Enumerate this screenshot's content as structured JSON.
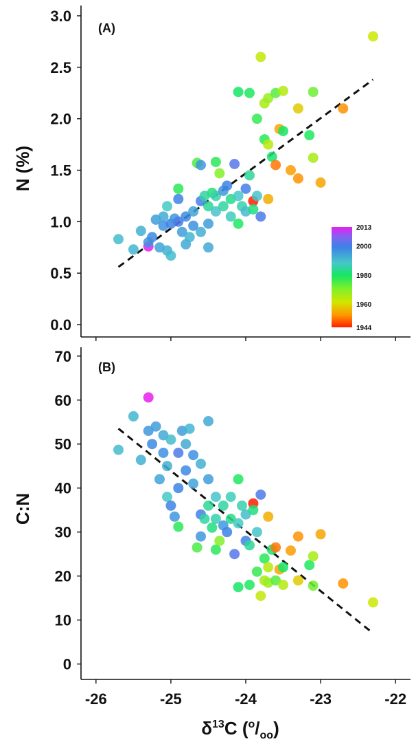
{
  "chart_data": [
    {
      "type": "scatter",
      "panel_label": "(A)",
      "ylabel": "N (%)",
      "xlabel": "",
      "xlim": [
        -26.2,
        -21.8
      ],
      "ylim": [
        -0.12,
        3.1
      ],
      "yticks": [
        0.0,
        0.5,
        1.0,
        1.5,
        2.0,
        2.5,
        3.0
      ],
      "ytick_labels": [
        "0.0",
        "0.5",
        "1.0",
        "1.5",
        "2.0",
        "2.5",
        "3.0"
      ],
      "xticks": [
        -26,
        -25,
        -24,
        -23,
        -22
      ],
      "trend": {
        "style": "dashed",
        "x": [
          -25.7,
          -22.3
        ],
        "y": [
          0.56,
          2.38
        ]
      },
      "colorbar": {
        "position": "bottom-right",
        "min": 1944,
        "max": 2013,
        "tick_values": [
          2013,
          2000,
          1980,
          1960,
          1944
        ],
        "tick_labels": [
          "2013",
          "2000",
          "1980",
          "1960",
          "1944"
        ]
      },
      "points": [
        {
          "x": -25.7,
          "y": 0.83,
          "year": 1990
        },
        {
          "x": -25.5,
          "y": 0.73,
          "year": 1991
        },
        {
          "x": -25.4,
          "y": 0.91,
          "year": 1992
        },
        {
          "x": -25.3,
          "y": 0.76,
          "year": 2013
        },
        {
          "x": -25.3,
          "y": 0.8,
          "year": 1996
        },
        {
          "x": -25.25,
          "y": 0.85,
          "year": 1998
        },
        {
          "x": -25.2,
          "y": 1.02,
          "year": 1995
        },
        {
          "x": -25.15,
          "y": 0.75,
          "year": 1994
        },
        {
          "x": -25.1,
          "y": 1.05,
          "year": 1993
        },
        {
          "x": -25.1,
          "y": 0.96,
          "year": 1997
        },
        {
          "x": -25.05,
          "y": 1.15,
          "year": 1988
        },
        {
          "x": -25.05,
          "y": 0.72,
          "year": 1992
        },
        {
          "x": -25.0,
          "y": 0.98,
          "year": 1999
        },
        {
          "x": -25.0,
          "y": 0.67,
          "year": 1990
        },
        {
          "x": -24.95,
          "y": 1.03,
          "year": 1996
        },
        {
          "x": -24.9,
          "y": 1.32,
          "year": 1978
        },
        {
          "x": -24.9,
          "y": 1.22,
          "year": 1999
        },
        {
          "x": -24.9,
          "y": 1.0,
          "year": 2001
        },
        {
          "x": -24.85,
          "y": 0.9,
          "year": 1995
        },
        {
          "x": -24.8,
          "y": 1.05,
          "year": 1998
        },
        {
          "x": -24.8,
          "y": 0.78,
          "year": 1993
        },
        {
          "x": -24.75,
          "y": 0.85,
          "year": 1991
        },
        {
          "x": -24.7,
          "y": 1.1,
          "year": 1994
        },
        {
          "x": -24.7,
          "y": 0.96,
          "year": 1997
        },
        {
          "x": -24.65,
          "y": 1.57,
          "year": 1975
        },
        {
          "x": -24.6,
          "y": 1.55,
          "year": 1996
        },
        {
          "x": -24.6,
          "y": 1.2,
          "year": 2000
        },
        {
          "x": -24.6,
          "y": 0.9,
          "year": 1992
        },
        {
          "x": -24.55,
          "y": 1.25,
          "year": 1985
        },
        {
          "x": -24.5,
          "y": 1.15,
          "year": 1984
        },
        {
          "x": -24.5,
          "y": 0.98,
          "year": 1995
        },
        {
          "x": -24.5,
          "y": 0.75,
          "year": 1993
        },
        {
          "x": -24.45,
          "y": 1.28,
          "year": 1982
        },
        {
          "x": -24.4,
          "y": 1.58,
          "year": 1978
        },
        {
          "x": -24.4,
          "y": 1.25,
          "year": 1986
        },
        {
          "x": -24.4,
          "y": 1.1,
          "year": 1989
        },
        {
          "x": -24.35,
          "y": 1.47,
          "year": 1970
        },
        {
          "x": -24.3,
          "y": 1.3,
          "year": 1996
        },
        {
          "x": -24.3,
          "y": 1.15,
          "year": 1985
        },
        {
          "x": -24.25,
          "y": 1.35,
          "year": 1999
        },
        {
          "x": -24.2,
          "y": 1.22,
          "year": 1983
        },
        {
          "x": -24.2,
          "y": 1.05,
          "year": 1987
        },
        {
          "x": -24.15,
          "y": 1.56,
          "year": 2002
        },
        {
          "x": -24.1,
          "y": 2.26,
          "year": 1980
        },
        {
          "x": -24.1,
          "y": 1.25,
          "year": 1988
        },
        {
          "x": -24.1,
          "y": 0.98,
          "year": 1979
        },
        {
          "x": -24.05,
          "y": 1.15,
          "year": 1986
        },
        {
          "x": -24.0,
          "y": 1.32,
          "year": 2000
        },
        {
          "x": -24.0,
          "y": 1.1,
          "year": 1990
        },
        {
          "x": -23.95,
          "y": 2.25,
          "year": 1979
        },
        {
          "x": -23.95,
          "y": 1.45,
          "year": 1984
        },
        {
          "x": -23.9,
          "y": 1.2,
          "year": 1944
        },
        {
          "x": -23.9,
          "y": 1.12,
          "year": 1982
        },
        {
          "x": -23.85,
          "y": 2.0,
          "year": 1977
        },
        {
          "x": -23.85,
          "y": 1.25,
          "year": 1989
        },
        {
          "x": -23.8,
          "y": 2.6,
          "year": 1963
        },
        {
          "x": -23.8,
          "y": 1.05,
          "year": 2001
        },
        {
          "x": -23.75,
          "y": 2.15,
          "year": 1966
        },
        {
          "x": -23.75,
          "y": 1.8,
          "year": 1978
        },
        {
          "x": -23.7,
          "y": 2.2,
          "year": 1968
        },
        {
          "x": -23.7,
          "y": 1.75,
          "year": 1964
        },
        {
          "x": -23.7,
          "y": 1.22,
          "year": 1955
        },
        {
          "x": -23.65,
          "y": 1.63,
          "year": 1981
        },
        {
          "x": -23.6,
          "y": 1.55,
          "year": 1950
        },
        {
          "x": -23.6,
          "y": 2.25,
          "year": 1974
        },
        {
          "x": -23.55,
          "y": 1.9,
          "year": 1954
        },
        {
          "x": -23.5,
          "y": 1.88,
          "year": 1980
        },
        {
          "x": -23.5,
          "y": 2.27,
          "year": 1965
        },
        {
          "x": -23.4,
          "y": 1.5,
          "year": 1953
        },
        {
          "x": -23.3,
          "y": 2.1,
          "year": 1958
        },
        {
          "x": -23.3,
          "y": 1.42,
          "year": 1952
        },
        {
          "x": -23.15,
          "y": 1.84,
          "year": 1979
        },
        {
          "x": -23.1,
          "y": 2.26,
          "year": 1972
        },
        {
          "x": -23.1,
          "y": 1.62,
          "year": 1966
        },
        {
          "x": -23.0,
          "y": 1.38,
          "year": 1954
        },
        {
          "x": -22.7,
          "y": 2.1,
          "year": 1952
        },
        {
          "x": -22.3,
          "y": 2.8,
          "year": 1962
        }
      ]
    },
    {
      "type": "scatter",
      "panel_label": "(B)",
      "ylabel": "C:N",
      "xlabel": "δ13C (o/oo)",
      "xlim": [
        -26.2,
        -21.8
      ],
      "ylim": [
        -3.5,
        72
      ],
      "yticks": [
        0,
        10,
        20,
        30,
        40,
        50,
        60,
        70
      ],
      "ytick_labels": [
        "0",
        "10",
        "20",
        "30",
        "40",
        "50",
        "60",
        "70"
      ],
      "xticks": [
        -26,
        -25,
        -24,
        -23,
        -22
      ],
      "xtick_labels": [
        "-26",
        "-25",
        "-24",
        "-23",
        "-22"
      ],
      "trend": {
        "style": "dashed",
        "x": [
          -25.7,
          -22.3
        ],
        "y": [
          53.5,
          7.0
        ]
      },
      "points": [
        {
          "x": -25.7,
          "y": 48.7,
          "year": 1990
        },
        {
          "x": -25.5,
          "y": 56.3,
          "year": 1991
        },
        {
          "x": -25.4,
          "y": 46.4,
          "year": 1992
        },
        {
          "x": -25.3,
          "y": 60.6,
          "year": 2013
        },
        {
          "x": -25.3,
          "y": 53.0,
          "year": 1996
        },
        {
          "x": -25.25,
          "y": 50.0,
          "year": 1998
        },
        {
          "x": -25.2,
          "y": 54.0,
          "year": 1995
        },
        {
          "x": -25.15,
          "y": 42.0,
          "year": 1994
        },
        {
          "x": -25.1,
          "y": 52.0,
          "year": 1993
        },
        {
          "x": -25.1,
          "y": 48.0,
          "year": 1997
        },
        {
          "x": -25.05,
          "y": 38.0,
          "year": 1988
        },
        {
          "x": -25.05,
          "y": 45.0,
          "year": 1992
        },
        {
          "x": -25.0,
          "y": 36.0,
          "year": 1999
        },
        {
          "x": -25.0,
          "y": 51.0,
          "year": 1990
        },
        {
          "x": -24.95,
          "y": 33.5,
          "year": 1996
        },
        {
          "x": -24.9,
          "y": 31.2,
          "year": 1978
        },
        {
          "x": -24.9,
          "y": 40.0,
          "year": 1999
        },
        {
          "x": -24.9,
          "y": 48.0,
          "year": 2001
        },
        {
          "x": -24.85,
          "y": 53.0,
          "year": 1995
        },
        {
          "x": -24.8,
          "y": 44.0,
          "year": 1998
        },
        {
          "x": -24.8,
          "y": 50.0,
          "year": 1993
        },
        {
          "x": -24.75,
          "y": 53.5,
          "year": 1991
        },
        {
          "x": -24.7,
          "y": 41.0,
          "year": 1994
        },
        {
          "x": -24.7,
          "y": 47.5,
          "year": 1997
        },
        {
          "x": -24.65,
          "y": 26.5,
          "year": 1975
        },
        {
          "x": -24.6,
          "y": 29.0,
          "year": 1996
        },
        {
          "x": -24.6,
          "y": 34.0,
          "year": 2000
        },
        {
          "x": -24.6,
          "y": 45.5,
          "year": 1992
        },
        {
          "x": -24.55,
          "y": 33.0,
          "year": 1985
        },
        {
          "x": -24.5,
          "y": 36.0,
          "year": 1984
        },
        {
          "x": -24.5,
          "y": 42.0,
          "year": 1995
        },
        {
          "x": -24.5,
          "y": 55.2,
          "year": 1993
        },
        {
          "x": -24.45,
          "y": 31.0,
          "year": 1982
        },
        {
          "x": -24.4,
          "y": 26.0,
          "year": 1978
        },
        {
          "x": -24.4,
          "y": 33.0,
          "year": 1986
        },
        {
          "x": -24.4,
          "y": 38.0,
          "year": 1989
        },
        {
          "x": -24.35,
          "y": 28.0,
          "year": 1970
        },
        {
          "x": -24.3,
          "y": 31.5,
          "year": 1996
        },
        {
          "x": -24.3,
          "y": 36.0,
          "year": 1985
        },
        {
          "x": -24.25,
          "y": 30.0,
          "year": 1999
        },
        {
          "x": -24.2,
          "y": 33.0,
          "year": 1983
        },
        {
          "x": -24.2,
          "y": 38.0,
          "year": 1987
        },
        {
          "x": -24.15,
          "y": 25.0,
          "year": 2002
        },
        {
          "x": -24.1,
          "y": 17.5,
          "year": 1980
        },
        {
          "x": -24.1,
          "y": 32.0,
          "year": 1988
        },
        {
          "x": -24.1,
          "y": 42.0,
          "year": 1979
        },
        {
          "x": -24.05,
          "y": 36.0,
          "year": 1986
        },
        {
          "x": -24.0,
          "y": 28.0,
          "year": 2000
        },
        {
          "x": -24.0,
          "y": 34.0,
          "year": 1990
        },
        {
          "x": -23.95,
          "y": 18.0,
          "year": 1979
        },
        {
          "x": -23.95,
          "y": 27.0,
          "year": 1984
        },
        {
          "x": -23.9,
          "y": 36.5,
          "year": 1944
        },
        {
          "x": -23.9,
          "y": 35.0,
          "year": 1982
        },
        {
          "x": -23.85,
          "y": 21.0,
          "year": 1977
        },
        {
          "x": -23.85,
          "y": 30.0,
          "year": 1989
        },
        {
          "x": -23.8,
          "y": 15.5,
          "year": 1963
        },
        {
          "x": -23.8,
          "y": 38.5,
          "year": 2001
        },
        {
          "x": -23.75,
          "y": 19.0,
          "year": 1966
        },
        {
          "x": -23.75,
          "y": 24.0,
          "year": 1978
        },
        {
          "x": -23.7,
          "y": 18.5,
          "year": 1968
        },
        {
          "x": -23.7,
          "y": 22.0,
          "year": 1964
        },
        {
          "x": -23.7,
          "y": 33.5,
          "year": 1955
        },
        {
          "x": -23.65,
          "y": 26.0,
          "year": 1981
        },
        {
          "x": -23.6,
          "y": 26.5,
          "year": 1950
        },
        {
          "x": -23.6,
          "y": 19.0,
          "year": 1974
        },
        {
          "x": -23.55,
          "y": 21.5,
          "year": 1954
        },
        {
          "x": -23.5,
          "y": 22.0,
          "year": 1980
        },
        {
          "x": -23.5,
          "y": 18.0,
          "year": 1965
        },
        {
          "x": -23.4,
          "y": 25.8,
          "year": 1953
        },
        {
          "x": -23.3,
          "y": 19.0,
          "year": 1958
        },
        {
          "x": -23.3,
          "y": 29.0,
          "year": 1952
        },
        {
          "x": -23.15,
          "y": 22.5,
          "year": 1979
        },
        {
          "x": -23.1,
          "y": 17.8,
          "year": 1972
        },
        {
          "x": -23.1,
          "y": 24.5,
          "year": 1966
        },
        {
          "x": -23.0,
          "y": 29.5,
          "year": 1954
        },
        {
          "x": -22.7,
          "y": 18.3,
          "year": 1952
        },
        {
          "x": -22.3,
          "y": 14.0,
          "year": 1962
        }
      ]
    }
  ]
}
